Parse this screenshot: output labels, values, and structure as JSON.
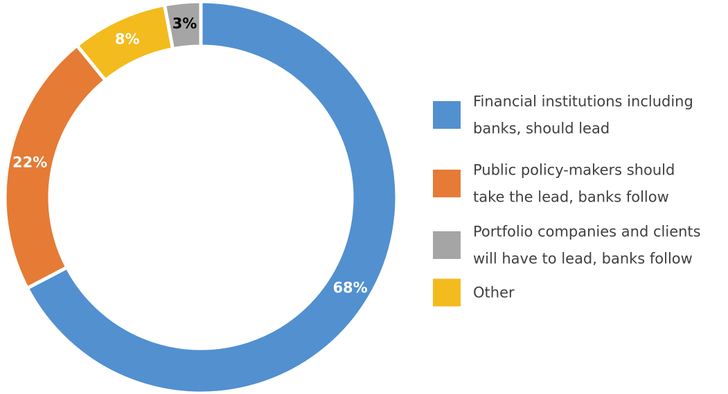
{
  "chart_data": {
    "type": "pie",
    "variant": "donut",
    "start_angle": "12 o'clock",
    "direction": "clockwise",
    "slices": [
      {
        "label": "Financial institutions including banks, should lead",
        "value": 68,
        "display": "68%",
        "color": "#5290D0",
        "label_color": "#FFFFFF"
      },
      {
        "label": "Public policy-makers should take the lead, banks follow",
        "value": 22,
        "display": "22%",
        "color": "#E57B35",
        "label_color": "#FFFFFF"
      },
      {
        "label": "Other",
        "value": 8,
        "display": "8%",
        "color": "#F4BB1E",
        "label_color": "#FFFFFF"
      },
      {
        "label": "Portfolio companies and clients will have to lead, banks follow",
        "value": 3,
        "display": "3%",
        "color": "#A5A5A5",
        "label_color": "#000000"
      }
    ],
    "legend": {
      "placement": "right",
      "entries": [
        {
          "lines": [
            "Financial institutions including",
            "banks, should lead"
          ],
          "color": "#5290D0"
        },
        {
          "lines": [
            "Public policy-makers should",
            "take the lead, banks follow"
          ],
          "color": "#E57B35"
        },
        {
          "lines": [
            "Portfolio companies and clients",
            "will have to lead, banks follow"
          ],
          "color": "#A5A5A5"
        },
        {
          "lines": [
            "Other"
          ],
          "color": "#F4BB1E"
        }
      ]
    }
  }
}
